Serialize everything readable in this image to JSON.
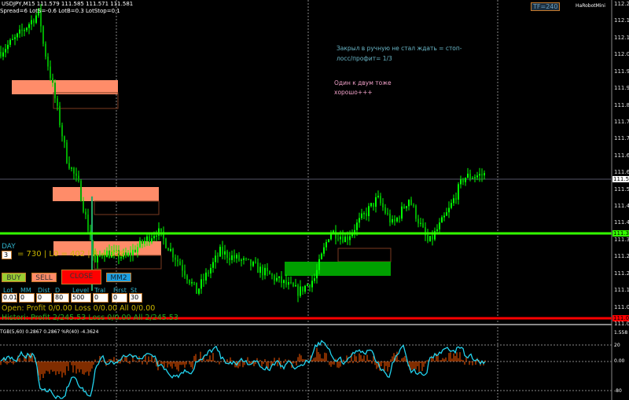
{
  "header": {
    "symbol_line": "USDJPY,M15  111.579 111.585 111.571 111.581",
    "params_line": "Spread=6  LotS=-0.6  LotB=0.3  LotStop=0.1",
    "tf_badge": "TF=240",
    "robot_name": "HaRobotMini"
  },
  "notes": {
    "note1_line1": "Закрыл в ручную не стал ждать = стоп-",
    "note1_line2": "лосс/профит= 1/3",
    "note2_line1": "Один к двум тоже",
    "note2_line2": "хорошо+++"
  },
  "panel": {
    "day_label": "DAY",
    "day_value": "3",
    "summary": "= 730 | L0 = 402 | R = 328",
    "buttons": {
      "buy": "BUY",
      "sell": "SELL",
      "close": "CLOSE",
      "mm2": "MM2"
    },
    "fields": [
      {
        "label": "Lot",
        "value": "0.01"
      },
      {
        "label": "MM",
        "value": "0"
      },
      {
        "label": "Dist",
        "value": "0"
      },
      {
        "label": "D",
        "value": "80"
      },
      {
        "label": "Level",
        "value": "500"
      },
      {
        "label": "Tral",
        "value": "0"
      },
      {
        "label": "First",
        "value": "0"
      },
      {
        "label": "St",
        "value": "30"
      }
    ],
    "open_line": "Open:  Profit 0/0.00  Loss 0/0.00  All 0/0.00",
    "history_line": "Histori: Profit 2/245.53  Loss 0/0.00  All 2/245.53"
  },
  "price_axis": [
    "112.23",
    "112.16",
    "112.10",
    "112.04",
    "111.97",
    "111.91",
    "111.85",
    "111.79",
    "111.72",
    "111.66",
    "111.60",
    "111.53",
    "111.47",
    "111.41",
    "111.34",
    "111.28",
    "111.22",
    "111.16",
    "111.09",
    "111.03"
  ],
  "price_markers": {
    "current": "111.58",
    "green_level": "111.37",
    "red_level": "111.05"
  },
  "indicator": {
    "title": "TGB(5,60) 0.2867 0.2867  %R(40) -4.3624",
    "scale_top": "1.558",
    "levels": [
      "20",
      "0.00",
      "-80"
    ]
  },
  "colors": {
    "bull": "#00ff00",
    "bear": "#00aa00",
    "green_line": "#33ff00",
    "red_line": "#ff0000",
    "zone_sell": "#ff8c69",
    "zone_buy": "#00a000",
    "hist": "#ff5a00",
    "wpr": "#22d3ee"
  }
}
